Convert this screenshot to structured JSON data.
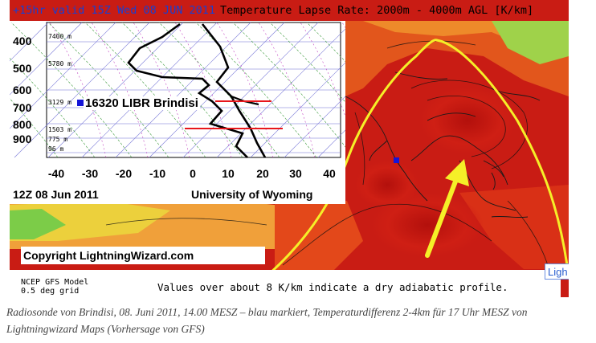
{
  "header": {
    "valid_text": "+15hr valid 15Z Wed 08 JUN 2011",
    "title": "Temperature Lapse Rate: 2000m - 4000m AGL  [K/km]"
  },
  "sounding": {
    "pressure_levels": [
      "400",
      "500",
      "600",
      "700",
      "800",
      "900"
    ],
    "height_labels": [
      "7400 m",
      "5780 m",
      "3129 m",
      "1503 m",
      "775 m",
      "96 m"
    ],
    "x_ticks": [
      "-40",
      "-30",
      "-20",
      "-10",
      "0",
      "10",
      "20",
      "30",
      "40"
    ],
    "station": "16320 LIBR Brindisi",
    "date": "12Z 08 Jun 2011",
    "source": "University of Wyoming",
    "colors": {
      "temperature": "#000000",
      "marker_lines": "#e8161b",
      "station_marker": "#1515d8"
    }
  },
  "map": {
    "copyright": "Copyright LightningWizard.com",
    "model": "NCEP GFS Model",
    "grid": "0.5 deg grid",
    "note": "Values over about 8 K/km indicate a dry adiabatic profile.",
    "brand_fragment": "Ligh",
    "colors": {
      "outline": "#f5ef28",
      "arrow": "#f5ef28",
      "high": "#c2140f",
      "medium": "#e8521c",
      "low": "#4fbf3a"
    }
  },
  "caption": "Radiosonde von Brindisi, 08. Juni 2011, 14.00 MESZ – blau markiert, Temperaturdifferenz 2-4km für 17 Uhr MESZ von Lightningwizard Maps (Vorhersage von GFS)"
}
